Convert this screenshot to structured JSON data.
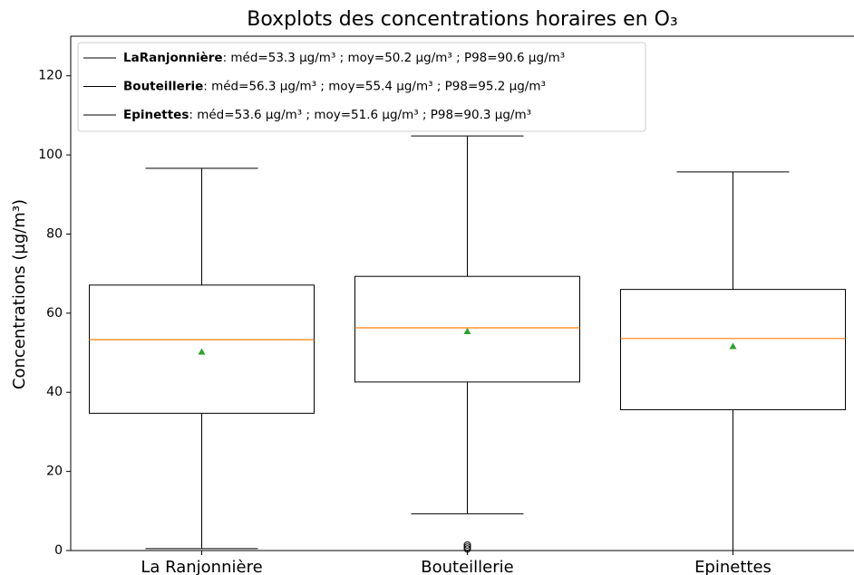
{
  "chart_data": {
    "type": "box",
    "title": "Boxplots des concentrations horaires en O₃",
    "ylabel": "Concentrations (µg/m³)",
    "categories": [
      "La Ranjonnière",
      "Bouteillerie",
      "Epinettes"
    ],
    "boxes": [
      {
        "whislo": 0.5,
        "q1": 34.7,
        "med": 53.3,
        "q3": 67.1,
        "whishi": 96.6,
        "mean": 50.2,
        "fliers": []
      },
      {
        "whislo": 9.3,
        "q1": 42.6,
        "med": 56.3,
        "q3": 69.3,
        "whishi": 104.8,
        "mean": 55.4,
        "fliers": [
          0.4,
          0.9,
          1.4
        ]
      },
      {
        "whislo": 0,
        "q1": 35.6,
        "med": 53.6,
        "q3": 66.0,
        "whishi": 95.7,
        "mean": 51.6,
        "fliers": []
      }
    ],
    "legend": [
      {
        "name": "LaRanjonnière",
        "text": ": méd=53.3 µg/m³ ; moy=50.2 µg/m³ ; P98=90.6 µg/m³"
      },
      {
        "name": "Bouteillerie",
        "text": ": méd=56.3 µg/m³ ; moy=55.4 µg/m³ ; P98=95.2 µg/m³"
      },
      {
        "name": "Epinettes",
        "text": ": méd=53.6 µg/m³ ; moy=51.6 µg/m³ ; P98=90.3 µg/m³"
      }
    ],
    "box_color": "#000000",
    "median_color": "#ff7f0e",
    "mean_color": "#2ca02c",
    "legend_position": "upper left",
    "ylim": [
      0,
      130
    ],
    "yticks": [
      0,
      20,
      40,
      60,
      80,
      100,
      120
    ]
  }
}
